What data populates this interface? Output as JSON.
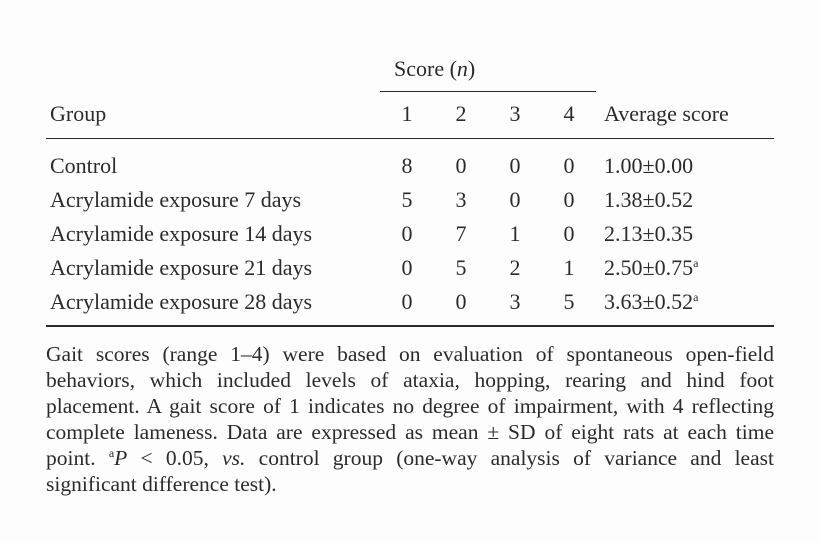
{
  "table": {
    "header": {
      "score_label": "Score (",
      "score_n": "n",
      "score_close": ")",
      "group": "Group",
      "scores": [
        "1",
        "2",
        "3",
        "4"
      ],
      "average": "Average score"
    },
    "rows": [
      {
        "group": "Control",
        "c1": "8",
        "c2": "0",
        "c3": "0",
        "c4": "0",
        "avg": "1.00±0.00",
        "sup": ""
      },
      {
        "group": "Acrylamide exposure 7 days",
        "c1": "5",
        "c2": "3",
        "c3": "0",
        "c4": "0",
        "avg": "1.38±0.52",
        "sup": ""
      },
      {
        "group": "Acrylamide exposure 14 days",
        "c1": "0",
        "c2": "7",
        "c3": "1",
        "c4": "0",
        "avg": "2.13±0.35",
        "sup": ""
      },
      {
        "group": "Acrylamide exposure 21 days",
        "c1": "0",
        "c2": "5",
        "c3": "2",
        "c4": "1",
        "avg": "2.50±0.75",
        "sup": "a"
      },
      {
        "group": "Acrylamide exposure 28 days",
        "c1": "0",
        "c2": "0",
        "c3": "3",
        "c4": "5",
        "avg": "3.63±0.52",
        "sup": "a"
      }
    ]
  },
  "note": {
    "part1": "Gait scores (range 1–4) were based on evaluation of spontaneous open-field behaviors, which included levels of ataxia, hopping, rearing and hind foot placement. A gait score of 1 indicates no degree of impairment, with 4 reflecting complete lameness. Data are expressed as mean ± SD of eight rats at each time point. ",
    "sup": "a",
    "p": "P",
    "part2": " < 0.05, ",
    "vs": "vs.",
    "part3": " control group (one-way analysis of variance and least significant difference test)."
  }
}
